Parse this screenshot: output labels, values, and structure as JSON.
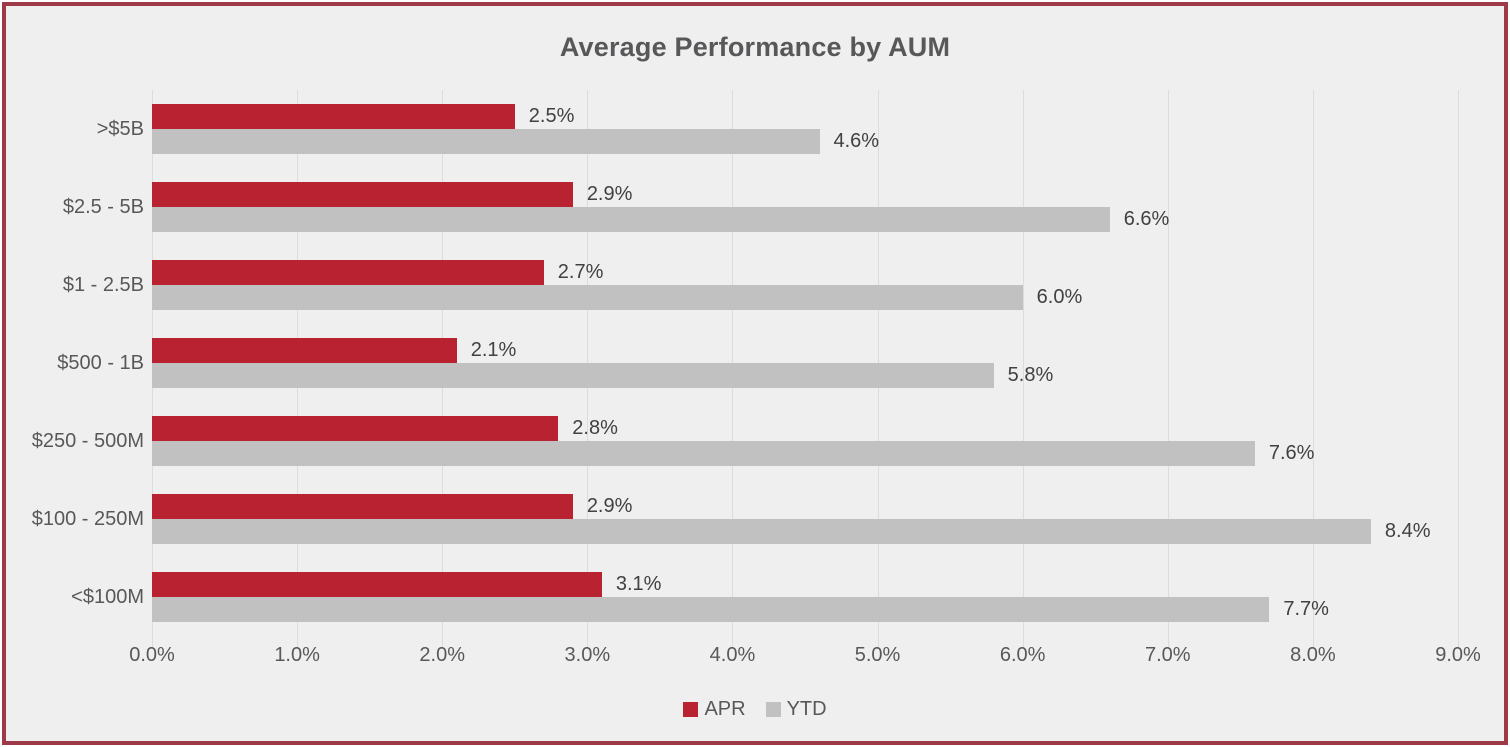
{
  "title": "Average Performance by AUM",
  "colors": {
    "frame_border": "#9e3a47",
    "background": "#efefef",
    "gridline": "#dcdcdc",
    "title_text": "#58585a",
    "axis_text": "#58585a",
    "value_label_text": "#414042",
    "bar_apr": "#b82231",
    "bar_ytd": "#c1c1c1"
  },
  "chart_data": {
    "type": "bar",
    "orientation": "horizontal",
    "title": "Average Performance by AUM",
    "categories": [
      ">$5B",
      "$2.5 - 5B",
      "$1 - 2.5B",
      "$500 - 1B",
      "$250 - 500M",
      "$100 - 250M",
      "<$100M"
    ],
    "series": [
      {
        "name": "APR",
        "color": "#b82231",
        "values": [
          2.5,
          2.9,
          2.7,
          2.1,
          2.8,
          2.9,
          3.1
        ]
      },
      {
        "name": "YTD",
        "color": "#c1c1c1",
        "values": [
          4.6,
          6.6,
          6.0,
          5.8,
          7.6,
          8.4,
          7.7
        ]
      }
    ],
    "value_label_format": "percent_one_decimal",
    "xlim": [
      0,
      9
    ],
    "x_ticks": [
      "0.0%",
      "1.0%",
      "2.0%",
      "3.0%",
      "4.0%",
      "5.0%",
      "6.0%",
      "7.0%",
      "8.0%",
      "9.0%"
    ],
    "xlabel": "",
    "ylabel": "",
    "grid": true,
    "legend_position": "bottom"
  }
}
